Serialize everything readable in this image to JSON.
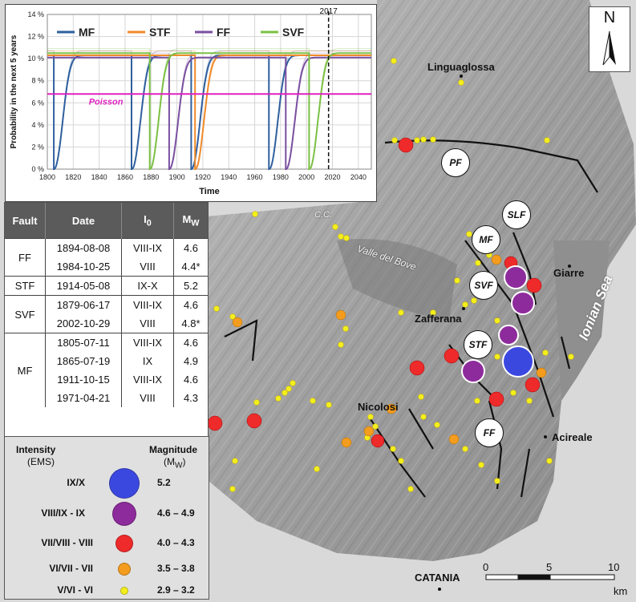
{
  "chart_data": {
    "type": "line",
    "xlabel": "Time",
    "ylabel": "Probability in the next 5 years",
    "xlim": [
      1800,
      2050
    ],
    "ylim": [
      0,
      14
    ],
    "x_ticks": [
      "1800",
      "1820",
      "1840",
      "1860",
      "1880",
      "1900",
      "1920",
      "1940",
      "1960",
      "1980",
      "2000",
      "2020",
      "2040"
    ],
    "y_ticks": [
      "0 %",
      "2 %",
      "4 %",
      "6 %",
      "8 %",
      "10 %",
      "12 %",
      "14 %"
    ],
    "grid": true,
    "legend": "top",
    "marker_line": {
      "x": 2017,
      "label": "2017"
    },
    "series": [
      {
        "name": "MF",
        "color": "#2e5f9e",
        "resets": [
          1805,
          1865,
          1911,
          1971
        ],
        "plateau": 10.3
      },
      {
        "name": "STF",
        "color": "#f08a2a",
        "resets": [
          1914
        ],
        "plateau": 10.3
      },
      {
        "name": "FF",
        "color": "#7a4fa0",
        "resets": [
          1894,
          1984
        ],
        "plateau": 10.1
      },
      {
        "name": "SVF",
        "color": "#7bc043",
        "resets": [
          1879,
          2002
        ],
        "plateau": 10.5
      },
      {
        "name": "Poisson",
        "color": "#e020c0",
        "constant": 6.8
      }
    ]
  },
  "table": {
    "headers": {
      "fault": "Fault",
      "date": "Date",
      "i0_main": "I",
      "i0_sub": "0",
      "mw_main": "M",
      "mw_sub": "W"
    },
    "groups": [
      {
        "fault": "FF",
        "rows": [
          {
            "date": "1894-08-08",
            "intensity": "VIII-IX",
            "mw": "4.6"
          },
          {
            "date": "1984-10-25",
            "intensity": "VIII",
            "mw": "4.4*"
          }
        ]
      },
      {
        "fault": "STF",
        "rows": [
          {
            "date": "1914-05-08",
            "intensity": "IX-X",
            "mw": "5.2"
          }
        ]
      },
      {
        "fault": "SVF",
        "rows": [
          {
            "date": "1879-06-17",
            "intensity": "VIII-IX",
            "mw": "4.6"
          },
          {
            "date": "2002-10-29",
            "intensity": "VIII",
            "mw": "4.8*"
          }
        ]
      },
      {
        "fault": "MF",
        "rows": [
          {
            "date": "1805-07-11",
            "intensity": "VIII-IX",
            "mw": "4.6"
          },
          {
            "date": "1865-07-19",
            "intensity": "IX",
            "mw": "4.9"
          },
          {
            "date": "1911-10-15",
            "intensity": "VIII-IX",
            "mw": "4.6"
          },
          {
            "date": "1971-04-21",
            "intensity": "VIII",
            "mw": "4.3"
          }
        ]
      }
    ]
  },
  "legend": {
    "intensity_title": "Intensity",
    "intensity_sub": "(EMS)",
    "magnitude_title": "Magnitude",
    "magnitude_sub_main": "(M",
    "magnitude_sub_w": "W",
    "magnitude_sub_end": ")",
    "classes": [
      {
        "intensity": "IX/X",
        "magnitude": "5.2",
        "color": "#3b48e0"
      },
      {
        "intensity": "VIII/IX - IX",
        "magnitude": "4.6 – 4.9",
        "color": "#8e2b9c"
      },
      {
        "intensity": "VII/VIII - VIII",
        "magnitude": "4.0 – 4.3",
        "color": "#ee2a2a"
      },
      {
        "intensity": "VI/VII - VII",
        "magnitude": "3.5 – 3.8",
        "color": "#f39c1e"
      },
      {
        "intensity": "V/VI - VI",
        "magnitude": "2.9 – 3.2",
        "color": "#f3ef1c"
      }
    ]
  },
  "map": {
    "places": {
      "linguaglossa": "Linguaglossa",
      "giarre": "Giarre",
      "zafferana": "Zafferana",
      "nicolosi": "Nicolosi",
      "acireale": "Acireale",
      "catania": "CATANIA",
      "cc": "C.C.",
      "valle": "Valle del Bove"
    },
    "sea": "Ionian Sea",
    "fault_tags": [
      "PF",
      "SLF",
      "MF",
      "SVF",
      "STF",
      "FF"
    ],
    "north": "N",
    "scale": {
      "labels": [
        "0",
        "5",
        "10"
      ],
      "unit": "km"
    }
  }
}
